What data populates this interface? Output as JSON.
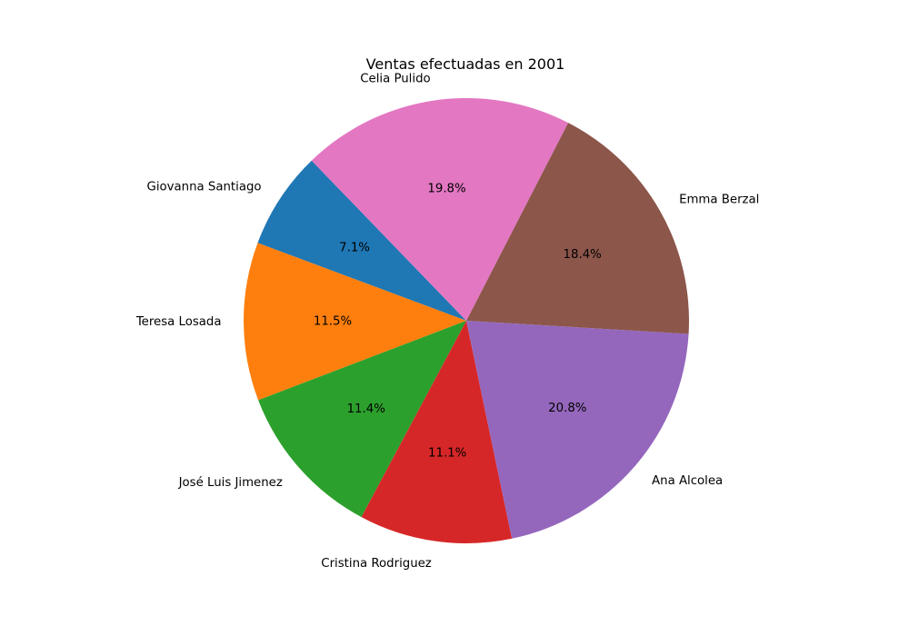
{
  "chart_data": {
    "type": "pie",
    "title": "Ventas efectuadas en 2001",
    "labels": [
      "Giovanna Santiago",
      "Teresa Losada",
      "José Luis Jimenez",
      "Cristina Rodriguez",
      "Ana Alcolea",
      "Emma Berzal",
      "Celia Pulido"
    ],
    "values": [
      7.1,
      11.5,
      11.4,
      11.1,
      20.8,
      18.4,
      19.8
    ],
    "percent_labels": [
      "7.1%",
      "11.5%",
      "11.4%",
      "11.1%",
      "20.8%",
      "18.4%",
      "19.8%"
    ],
    "colors": [
      "#1f77b4",
      "#ff7f0e",
      "#2ca02c",
      "#d62728",
      "#9467bd",
      "#8c564b",
      "#e377c2"
    ]
  }
}
